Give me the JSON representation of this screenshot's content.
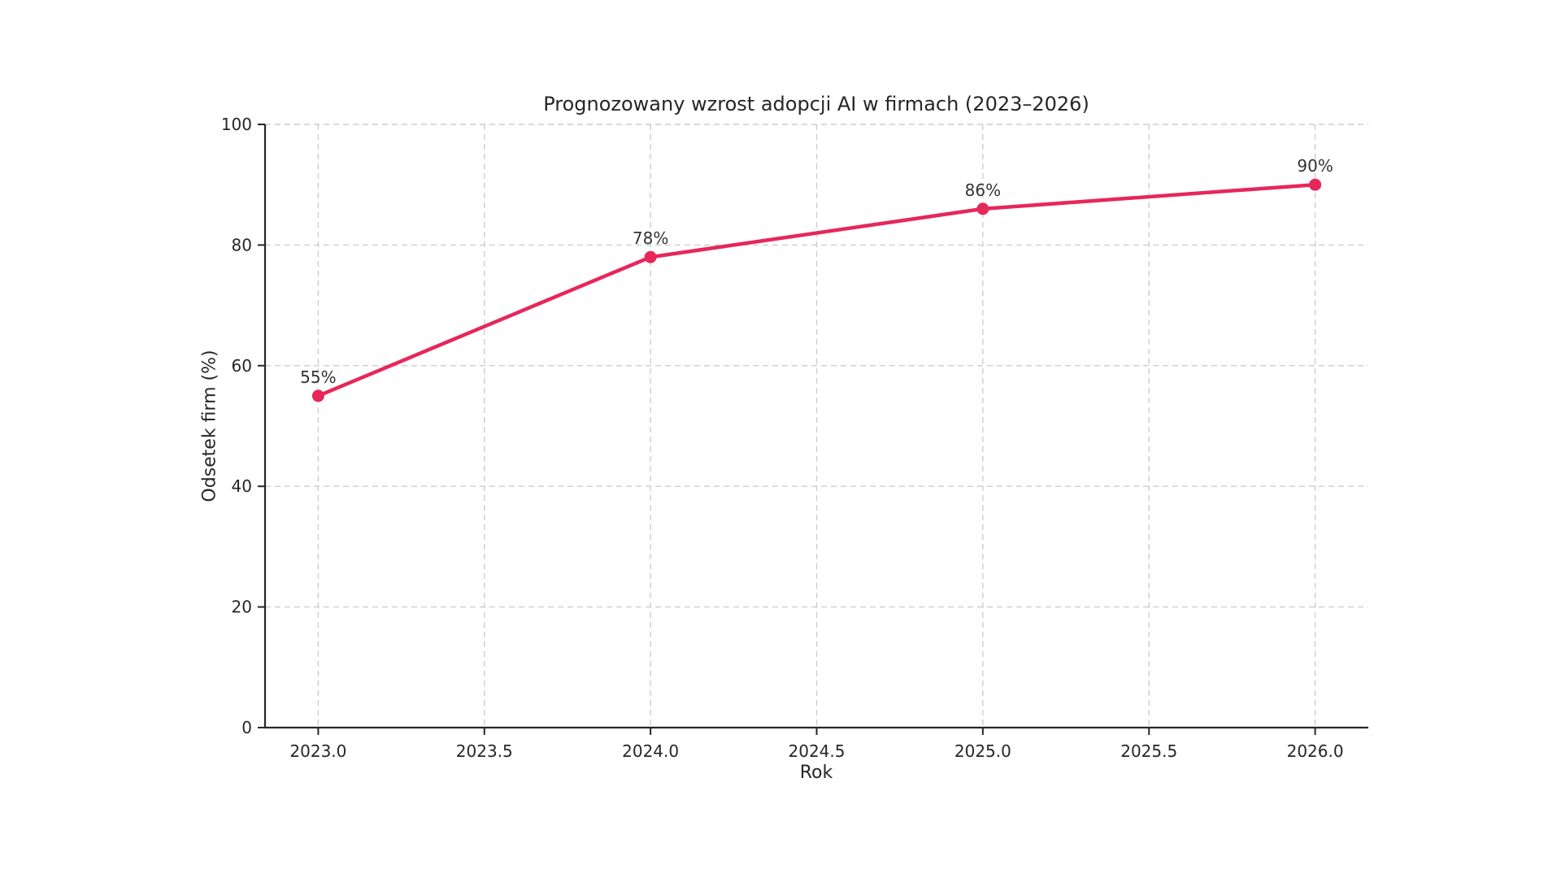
{
  "chart_data": {
    "type": "line",
    "title": "Prognozowany wzrost adopcji AI w firmach (2023–2026)",
    "xlabel": "Rok",
    "ylabel": "Odsetek firm (%)",
    "x": [
      2023,
      2024,
      2025,
      2026
    ],
    "series": [
      {
        "name": "Odsetek firm",
        "values": [
          55,
          78,
          86,
          90
        ]
      }
    ],
    "point_labels": [
      "55%",
      "78%",
      "86%",
      "90%"
    ],
    "x_ticks": [
      2023.0,
      2023.5,
      2024.0,
      2024.5,
      2025.0,
      2025.5,
      2026.0
    ],
    "x_tick_labels": [
      "2023.0",
      "2023.5",
      "2024.0",
      "2024.5",
      "2025.0",
      "2025.5",
      "2026.0"
    ],
    "y_ticks": [
      0,
      20,
      40,
      60,
      80,
      100
    ],
    "y_tick_labels": [
      "0",
      "20",
      "40",
      "60",
      "80",
      "100"
    ],
    "xlim": [
      2022.84,
      2026.16
    ],
    "ylim": [
      0,
      100
    ],
    "grid": true,
    "grid_style": "dashed",
    "legend": "none",
    "colors": {
      "line": "#e6275a",
      "marker": "#e6275a",
      "grid": "#cdcdcd",
      "spine": "#262626",
      "text": "#262626",
      "annotation": "#333333",
      "background": "#ffffff"
    }
  }
}
